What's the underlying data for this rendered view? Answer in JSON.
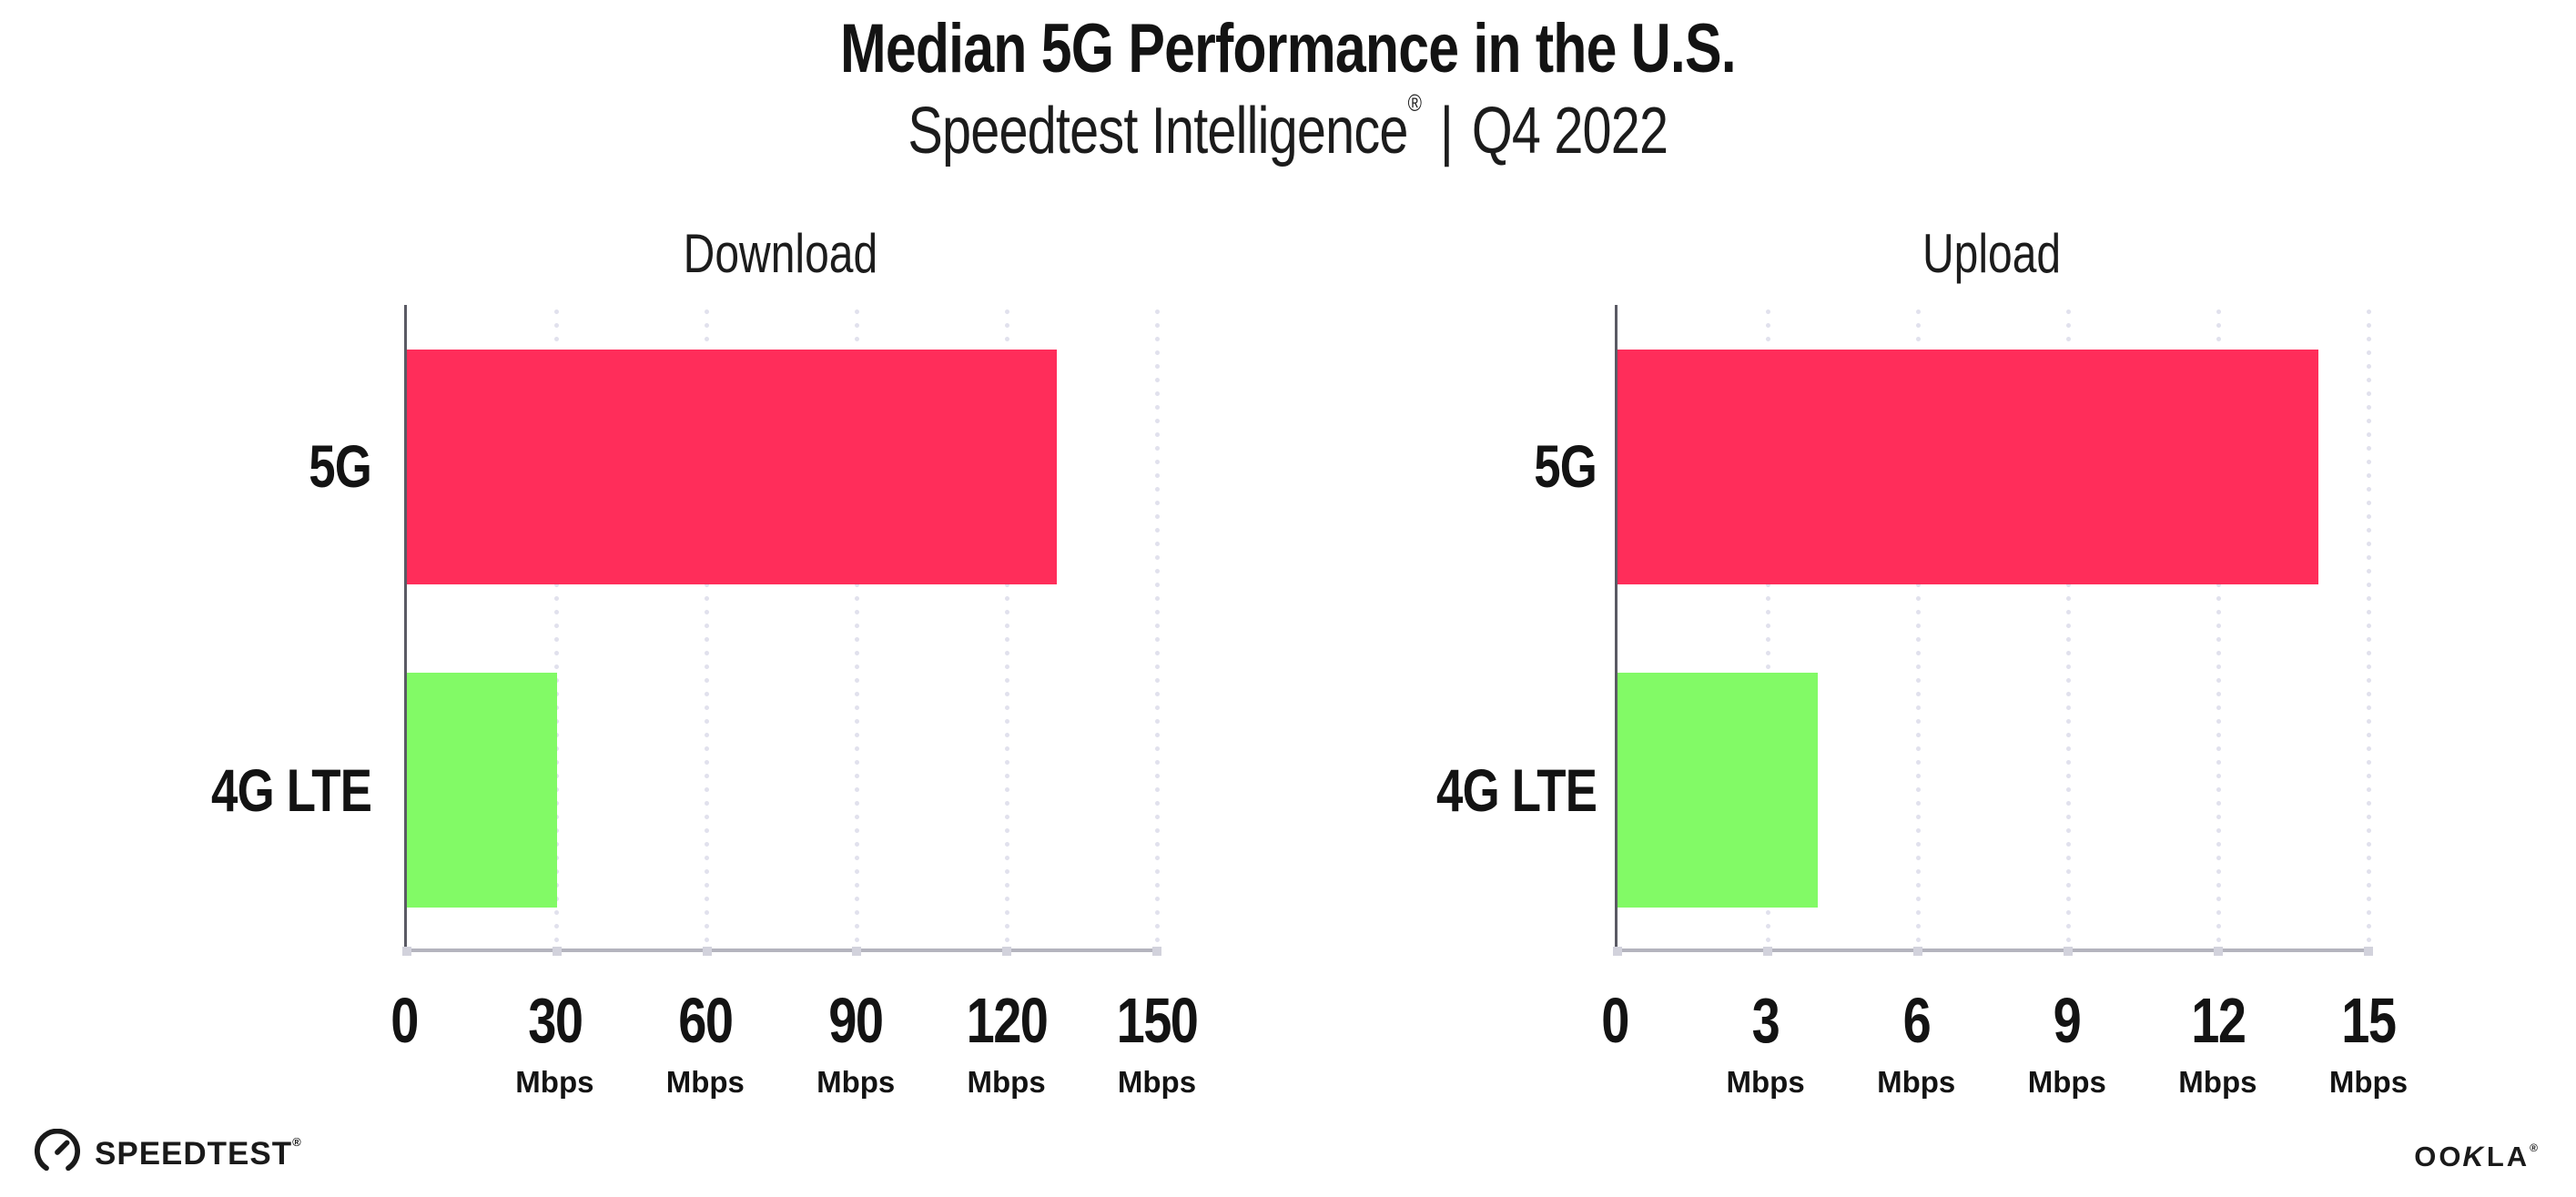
{
  "page": {
    "background": "#ffffff"
  },
  "header": {
    "title": "Median 5G Performance in the U.S.",
    "subtitle_brand": "Speedtest Intelligence",
    "subtitle_registered_mark": "®",
    "subtitle_separator": "|",
    "subtitle_period": "Q4 2022"
  },
  "footer": {
    "speedtest_logo_text": "SPEEDTEST",
    "speedtest_registered_mark": "®",
    "ookla_logo_text_left": "OO",
    "ookla_logo_text_k": "K",
    "ookla_logo_text_right": "LA",
    "ookla_registered_mark": "®"
  },
  "colors": {
    "bar_5g": "#ff2d5a",
    "bar_4g_lte": "#82fa66",
    "gridline": "#e1e1ed",
    "x_axis": "#b4b4be",
    "y_axis": "#5a5a64",
    "tick_dot": "#d2d2dc",
    "text": "#131313"
  },
  "chart_data": [
    {
      "type": "bar",
      "orientation": "horizontal",
      "title": "Download",
      "categories": [
        "5G",
        "4G LTE"
      ],
      "values": [
        130,
        30
      ],
      "unit": "Mbps",
      "xlim": [
        0,
        150
      ],
      "xticks": [
        0,
        30,
        60,
        90,
        120,
        150
      ],
      "bar_colors": [
        "#ff2d5a",
        "#82fa66"
      ],
      "grid": "vertical-dotted",
      "legend": "none"
    },
    {
      "type": "bar",
      "orientation": "horizontal",
      "title": "Upload",
      "categories": [
        "5G",
        "4G LTE"
      ],
      "values": [
        14,
        4
      ],
      "unit": "Mbps",
      "xlim": [
        0,
        15
      ],
      "xticks": [
        0,
        3,
        6,
        9,
        12,
        15
      ],
      "bar_colors": [
        "#ff2d5a",
        "#82fa66"
      ],
      "grid": "vertical-dotted",
      "legend": "none"
    }
  ]
}
